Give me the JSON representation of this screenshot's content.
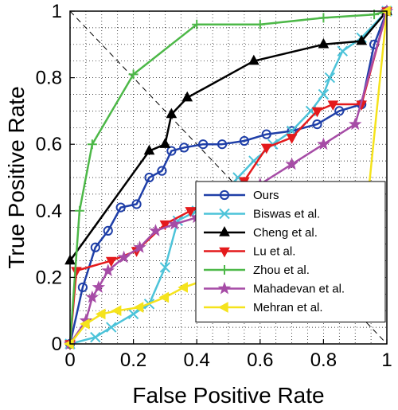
{
  "chart_data": {
    "type": "line",
    "title": "",
    "xlabel": "False Positive Rate",
    "ylabel": "True Positive Rate",
    "xlim": [
      0,
      1
    ],
    "ylim": [
      0,
      1
    ],
    "xticks": [
      0,
      0.2,
      0.4,
      0.6,
      0.8,
      1
    ],
    "yticks": [
      0,
      0.2,
      0.4,
      0.6,
      0.8,
      1
    ],
    "xtick_labels": [
      "0",
      "0.2",
      "0.4",
      "0.6",
      "0.8",
      "1"
    ],
    "ytick_labels": [
      "0",
      "0.2",
      "0.4",
      "0.6",
      "0.8",
      "1"
    ],
    "grid": true,
    "grid_style": "dotted",
    "legend_position": "bottom-right",
    "reference_line": {
      "from": [
        0,
        1
      ],
      "to": [
        1,
        0
      ],
      "style": "dashed",
      "color": "#000000"
    },
    "series": [
      {
        "name": "Ours",
        "color": "#1f3fa8",
        "marker": "circle",
        "points": [
          [
            0,
            0
          ],
          [
            0.04,
            0.17
          ],
          [
            0.08,
            0.29
          ],
          [
            0.12,
            0.34
          ],
          [
            0.16,
            0.41
          ],
          [
            0.21,
            0.42
          ],
          [
            0.25,
            0.5
          ],
          [
            0.29,
            0.52
          ],
          [
            0.32,
            0.58
          ],
          [
            0.36,
            0.59
          ],
          [
            0.42,
            0.6
          ],
          [
            0.48,
            0.6
          ],
          [
            0.55,
            0.61
          ],
          [
            0.62,
            0.63
          ],
          [
            0.7,
            0.64
          ],
          [
            0.78,
            0.66
          ],
          [
            0.85,
            0.7
          ],
          [
            0.92,
            0.72
          ],
          [
            0.96,
            0.9
          ],
          [
            1,
            1
          ]
        ]
      },
      {
        "name": "Biswas et al.",
        "color": "#4cc3d9",
        "marker": "x",
        "points": [
          [
            0,
            0
          ],
          [
            0.08,
            0.02
          ],
          [
            0.13,
            0.05
          ],
          [
            0.2,
            0.09
          ],
          [
            0.25,
            0.12
          ],
          [
            0.3,
            0.23
          ],
          [
            0.34,
            0.37
          ],
          [
            0.4,
            0.4
          ],
          [
            0.47,
            0.43
          ],
          [
            0.53,
            0.5
          ],
          [
            0.58,
            0.55
          ],
          [
            0.64,
            0.6
          ],
          [
            0.7,
            0.64
          ],
          [
            0.76,
            0.7
          ],
          [
            0.8,
            0.75
          ],
          [
            0.82,
            0.8
          ],
          [
            0.86,
            0.88
          ],
          [
            0.92,
            0.92
          ],
          [
            1,
            1
          ]
        ]
      },
      {
        "name": "Cheng et al.",
        "color": "#000000",
        "marker": "triangle-up",
        "points": [
          [
            0,
            0.25
          ],
          [
            0.25,
            0.58
          ],
          [
            0.3,
            0.6
          ],
          [
            0.32,
            0.69
          ],
          [
            0.37,
            0.74
          ],
          [
            0.58,
            0.85
          ],
          [
            0.8,
            0.9
          ],
          [
            0.92,
            0.91
          ],
          [
            1,
            1
          ]
        ]
      },
      {
        "name": "Lu et al.",
        "color": "#e41a1c",
        "marker": "triangle-down",
        "points": [
          [
            0,
            0
          ],
          [
            0.02,
            0.22
          ],
          [
            0.13,
            0.25
          ],
          [
            0.21,
            0.28
          ],
          [
            0.3,
            0.36
          ],
          [
            0.38,
            0.4
          ],
          [
            0.47,
            0.43
          ],
          [
            0.55,
            0.49
          ],
          [
            0.62,
            0.59
          ],
          [
            0.7,
            0.62
          ],
          [
            0.78,
            0.7
          ],
          [
            0.83,
            0.72
          ],
          [
            0.92,
            0.72
          ],
          [
            1,
            1
          ]
        ]
      },
      {
        "name": "Zhou et al.",
        "color": "#4db848",
        "marker": "plus",
        "points": [
          [
            0,
            0
          ],
          [
            0.03,
            0.4
          ],
          [
            0.07,
            0.6
          ],
          [
            0.2,
            0.81
          ],
          [
            0.4,
            0.96
          ],
          [
            0.6,
            0.96
          ],
          [
            0.8,
            0.98
          ],
          [
            0.96,
            0.99
          ],
          [
            1,
            1
          ]
        ]
      },
      {
        "name": "Mahadevan et al.",
        "color": "#a64ca6",
        "marker": "star",
        "points": [
          [
            0,
            0
          ],
          [
            0.05,
            0.07
          ],
          [
            0.07,
            0.14
          ],
          [
            0.09,
            0.17
          ],
          [
            0.12,
            0.22
          ],
          [
            0.17,
            0.26
          ],
          [
            0.22,
            0.29
          ],
          [
            0.27,
            0.34
          ],
          [
            0.33,
            0.36
          ],
          [
            0.4,
            0.38
          ],
          [
            0.5,
            0.42
          ],
          [
            0.6,
            0.48
          ],
          [
            0.7,
            0.54
          ],
          [
            0.8,
            0.6
          ],
          [
            0.9,
            0.66
          ],
          [
            1,
            1
          ]
        ]
      },
      {
        "name": "Mehran et al.",
        "color": "#f5e31c",
        "marker": "triangle-left",
        "points": [
          [
            0,
            0
          ],
          [
            0.05,
            0.06
          ],
          [
            0.1,
            0.09
          ],
          [
            0.15,
            0.1
          ],
          [
            0.22,
            0.11
          ],
          [
            0.3,
            0.14
          ],
          [
            0.36,
            0.17
          ],
          [
            0.42,
            0.19
          ],
          [
            0.5,
            0.2
          ],
          [
            0.6,
            0.21
          ],
          [
            0.75,
            0.22
          ],
          [
            0.85,
            0.23
          ],
          [
            0.92,
            0.25
          ],
          [
            1,
            1
          ]
        ]
      }
    ]
  }
}
